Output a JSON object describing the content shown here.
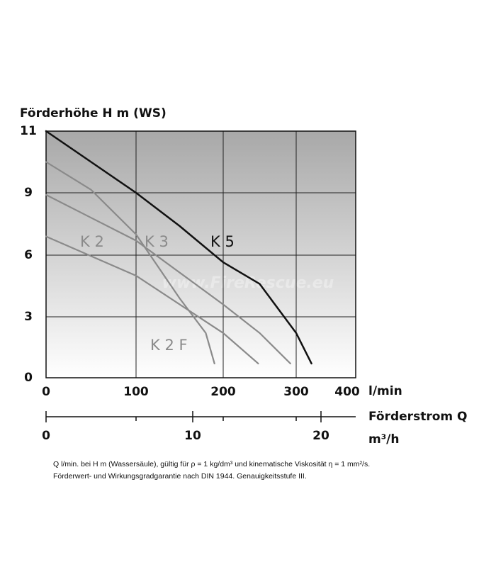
{
  "chart_data": {
    "type": "line",
    "y_label": "Förderhöhe H m (WS)",
    "x_unit": "l/min",
    "x2_label": "Förderstrom Q",
    "x2_unit": "m³/h",
    "watermark": "www.FireRescue.eu",
    "xlim": [
      0,
      400
    ],
    "xticks": [
      0,
      100,
      200,
      300,
      400
    ],
    "ylim": [
      0,
      11
    ],
    "yticks": [
      11,
      9,
      6,
      3,
      0
    ],
    "x2ticks": [
      0,
      10,
      20
    ],
    "grid": true,
    "series": [
      {
        "name": "K 5",
        "color": "#111111",
        "x": [
          0,
          50,
          100,
          150,
          200,
          250,
          300,
          330
        ],
        "values": [
          11,
          10,
          9,
          7.4,
          5.65,
          4.6,
          2.2,
          0.7
        ]
      },
      {
        "name": "K 2 F",
        "color": "#8a8a8a",
        "x": [
          0,
          50,
          100,
          150,
          180,
          190
        ],
        "values": [
          10,
          9.1,
          7,
          3.9,
          2.2,
          0.7
        ]
      },
      {
        "name": "K 3",
        "color": "#8a8a8a",
        "x": [
          0,
          100,
          200,
          250,
          292
        ],
        "values": [
          8.9,
          6.7,
          3.6,
          2.2,
          0.7
        ]
      },
      {
        "name": "K 2",
        "color": "#8a8a8a",
        "x": [
          0,
          100,
          200,
          248
        ],
        "values": [
          6.9,
          5,
          2.2,
          0.7
        ]
      }
    ],
    "notes": [
      "Q l/min. bei H m (Wassersäule), gültig für ρ = 1 kg/dm³ und kinematische Viskosität η = 1 mm²/s.",
      "Förderwert- und Wirkungsgradgarantie nach DIN 1944. Genauigkeitsstufe III."
    ]
  }
}
